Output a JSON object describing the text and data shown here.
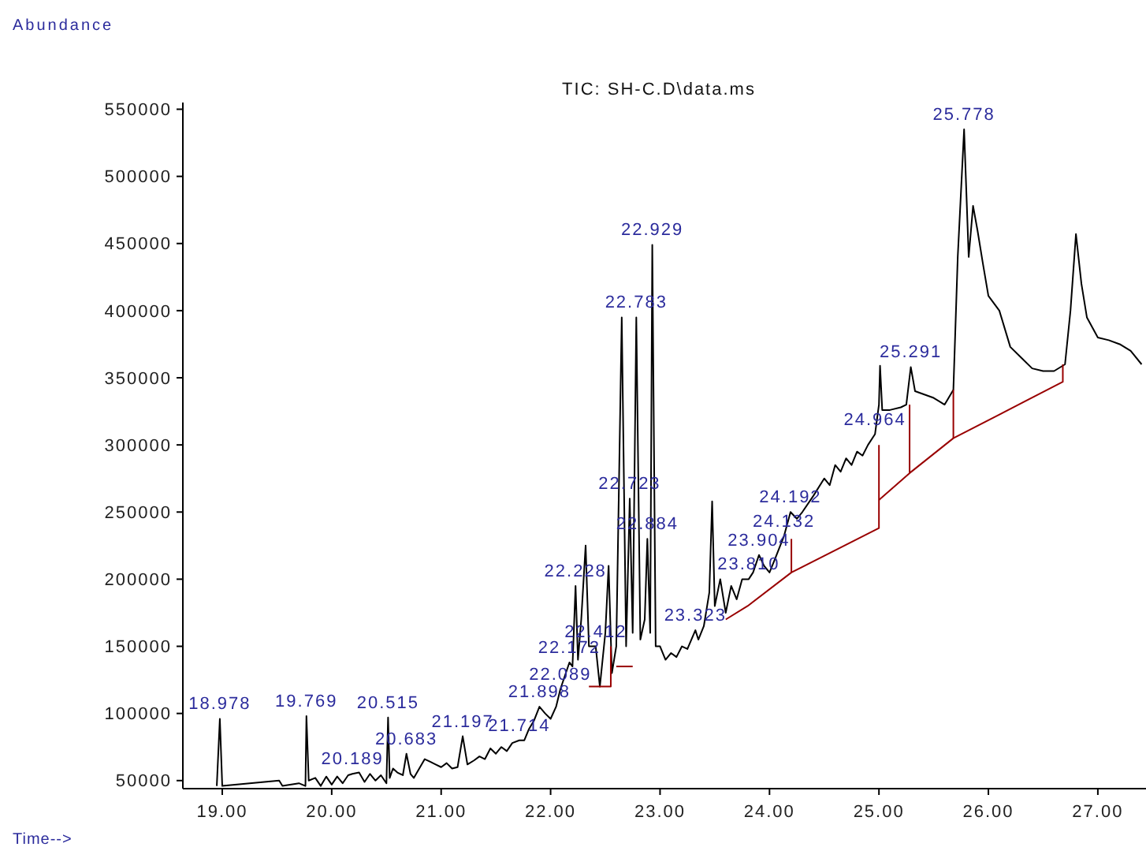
{
  "chart_data": {
    "type": "line",
    "title": "TIC: SH-C.D\\data.ms",
    "xlabel": "Time-->",
    "ylabel": "Abundance",
    "xlim": [
      18.64,
      27.44
    ],
    "ylim": [
      44000,
      555000
    ],
    "xticks": [
      {
        "value": 19,
        "label": "19.00"
      },
      {
        "value": 20,
        "label": "20.00"
      },
      {
        "value": 21,
        "label": "21.00"
      },
      {
        "value": 22,
        "label": "22.00"
      },
      {
        "value": 23,
        "label": "23.00"
      },
      {
        "value": 24,
        "label": "24.00"
      },
      {
        "value": 25,
        "label": "25.00"
      },
      {
        "value": 26,
        "label": "26.00"
      },
      {
        "value": 27,
        "label": "27.00"
      }
    ],
    "yticks": [
      50000,
      100000,
      150000,
      200000,
      250000,
      300000,
      350000,
      400000,
      450000,
      500000,
      550000
    ],
    "grid": false,
    "marker": "none",
    "line_style": "solid",
    "series": [
      {
        "color": "#000000",
        "x": [
          18.95,
          18.978,
          19.0,
          19.52,
          19.55,
          19.7,
          19.76,
          19.769,
          19.79,
          19.85,
          19.9,
          19.95,
          20.0,
          20.05,
          20.1,
          20.15,
          20.189,
          20.25,
          20.3,
          20.35,
          20.4,
          20.45,
          20.5,
          20.515,
          20.53,
          20.56,
          20.6,
          20.65,
          20.683,
          20.72,
          20.75,
          20.85,
          20.9,
          20.95,
          21.0,
          21.05,
          21.1,
          21.15,
          21.197,
          21.24,
          21.3,
          21.35,
          21.4,
          21.45,
          21.5,
          21.55,
          21.6,
          21.65,
          21.714,
          21.76,
          21.8,
          21.85,
          21.898,
          21.95,
          22.0,
          22.05,
          22.089,
          22.172,
          22.2,
          22.228,
          22.25,
          22.28,
          22.32,
          22.35,
          22.412,
          22.45,
          22.5,
          22.53,
          22.56,
          22.6,
          22.65,
          22.69,
          22.723,
          22.75,
          22.783,
          22.82,
          22.86,
          22.884,
          22.91,
          22.929,
          22.96,
          23.0,
          23.05,
          23.1,
          23.15,
          23.2,
          23.25,
          23.323,
          23.35,
          23.4,
          23.45,
          23.476,
          23.5,
          23.55,
          23.6,
          23.65,
          23.7,
          23.75,
          23.81,
          23.85,
          23.904,
          23.95,
          24.0,
          24.05,
          24.132,
          24.192,
          24.25,
          24.3,
          24.4,
          24.5,
          24.55,
          24.6,
          24.65,
          24.7,
          24.75,
          24.8,
          24.85,
          24.9,
          24.964,
          25.0,
          25.01,
          25.03,
          25.1,
          25.2,
          25.25,
          25.291,
          25.33,
          25.4,
          25.5,
          25.6,
          25.68,
          25.72,
          25.778,
          25.82,
          25.86,
          25.9,
          25.95,
          26.0,
          26.1,
          26.2,
          26.3,
          26.4,
          26.5,
          26.6,
          26.7,
          26.75,
          26.8,
          26.85,
          26.9,
          27.0,
          27.1,
          27.2,
          27.3,
          27.4
        ],
        "values": [
          46000,
          96000,
          46000,
          50000,
          46000,
          48000,
          46000,
          98000,
          50000,
          52000,
          46000,
          53000,
          47000,
          53000,
          48000,
          54000,
          55000,
          56000,
          49000,
          55000,
          50000,
          54000,
          48000,
          97000,
          52000,
          59000,
          56000,
          54000,
          70000,
          55000,
          52000,
          66000,
          64000,
          62000,
          60000,
          63000,
          59000,
          60000,
          83000,
          62000,
          65000,
          68000,
          66000,
          74000,
          70000,
          75000,
          72000,
          78000,
          80000,
          80000,
          88000,
          95000,
          105000,
          100000,
          96000,
          105000,
          118000,
          138000,
          135000,
          195000,
          140000,
          170000,
          225000,
          150000,
          150000,
          120000,
          160000,
          210000,
          130000,
          150000,
          395000,
          150000,
          260000,
          160000,
          395000,
          155000,
          170000,
          230000,
          160000,
          449000,
          150000,
          150000,
          140000,
          145000,
          142000,
          150000,
          148000,
          162000,
          155000,
          165000,
          190000,
          258000,
          180000,
          200000,
          175000,
          195000,
          185000,
          200000,
          200000,
          205000,
          218000,
          210000,
          205000,
          215000,
          232000,
          250000,
          245000,
          250000,
          262000,
          275000,
          270000,
          285000,
          280000,
          290000,
          285000,
          295000,
          292000,
          300000,
          308000,
          330000,
          359000,
          326000,
          326000,
          328000,
          330000,
          358000,
          340000,
          338000,
          335000,
          330000,
          341000,
          440000,
          535000,
          440000,
          478000,
          460000,
          435000,
          411000,
          400000,
          373000,
          365000,
          357000,
          355000,
          355000,
          360000,
          400000,
          457000,
          420000,
          395000,
          380000,
          378000,
          375000,
          370000,
          360000
        ]
      },
      {
        "color": "#990000",
        "x": [
          22.35,
          22.55,
          22.55
        ],
        "values": [
          120000,
          120000,
          150000
        ]
      },
      {
        "color": "#990000",
        "x": [
          22.6,
          22.75
        ],
        "values": [
          135000,
          135000
        ]
      },
      {
        "color": "#990000",
        "x": [
          23.6,
          23.8,
          24.2,
          25.0,
          25.0
        ],
        "values": [
          170000,
          180000,
          205000,
          238000,
          300000
        ]
      },
      {
        "color": "#990000",
        "x": [
          24.2,
          24.2
        ],
        "values": [
          205000,
          230000
        ]
      },
      {
        "color": "#990000",
        "x": [
          25.0,
          25.28,
          25.68,
          26.68,
          26.68
        ],
        "values": [
          259000,
          279000,
          305000,
          347000,
          360000
        ]
      },
      {
        "color": "#990000",
        "x": [
          25.28,
          25.28
        ],
        "values": [
          279000,
          330000
        ]
      },
      {
        "color": "#990000",
        "x": [
          25.68,
          25.68
        ],
        "values": [
          305000,
          341000
        ]
      }
    ],
    "annotations": [
      {
        "text": "18.978",
        "x": 18.978,
        "y": 96000
      },
      {
        "text": "19.769",
        "x": 19.769,
        "y": 98000
      },
      {
        "text": "20.189",
        "x": 20.189,
        "y": 55000
      },
      {
        "text": "20.515",
        "x": 20.515,
        "y": 97000
      },
      {
        "text": "20.683",
        "x": 20.683,
        "y": 70000
      },
      {
        "text": "21.197",
        "x": 21.197,
        "y": 83000
      },
      {
        "text": "21.714",
        "x": 21.714,
        "y": 80000
      },
      {
        "text": "21.898",
        "x": 21.898,
        "y": 105000
      },
      {
        "text": "22.089",
        "x": 22.089,
        "y": 118000
      },
      {
        "text": "22.172",
        "x": 22.172,
        "y": 138000
      },
      {
        "text": "22.412",
        "x": 22.412,
        "y": 150000
      },
      {
        "text": "22.228",
        "x": 22.228,
        "y": 195000
      },
      {
        "text": "22.884",
        "x": 22.884,
        "y": 230000
      },
      {
        "text": "22.723",
        "x": 22.723,
        "y": 260000
      },
      {
        "text": "22.783",
        "x": 22.783,
        "y": 395000
      },
      {
        "text": "22.929",
        "x": 22.929,
        "y": 449000
      },
      {
        "text": "23.323",
        "x": 23.323,
        "y": 162000
      },
      {
        "text": "23.810",
        "x": 23.81,
        "y": 200000
      },
      {
        "text": "23.904",
        "x": 23.904,
        "y": 218000
      },
      {
        "text": "24.132",
        "x": 24.132,
        "y": 232000
      },
      {
        "text": "24.192",
        "x": 24.192,
        "y": 250000
      },
      {
        "text": "24.964",
        "x": 24.964,
        "y": 308000
      },
      {
        "text": "25.291",
        "x": 25.291,
        "y": 358000
      },
      {
        "text": "25.778",
        "x": 25.778,
        "y": 535000
      }
    ]
  }
}
